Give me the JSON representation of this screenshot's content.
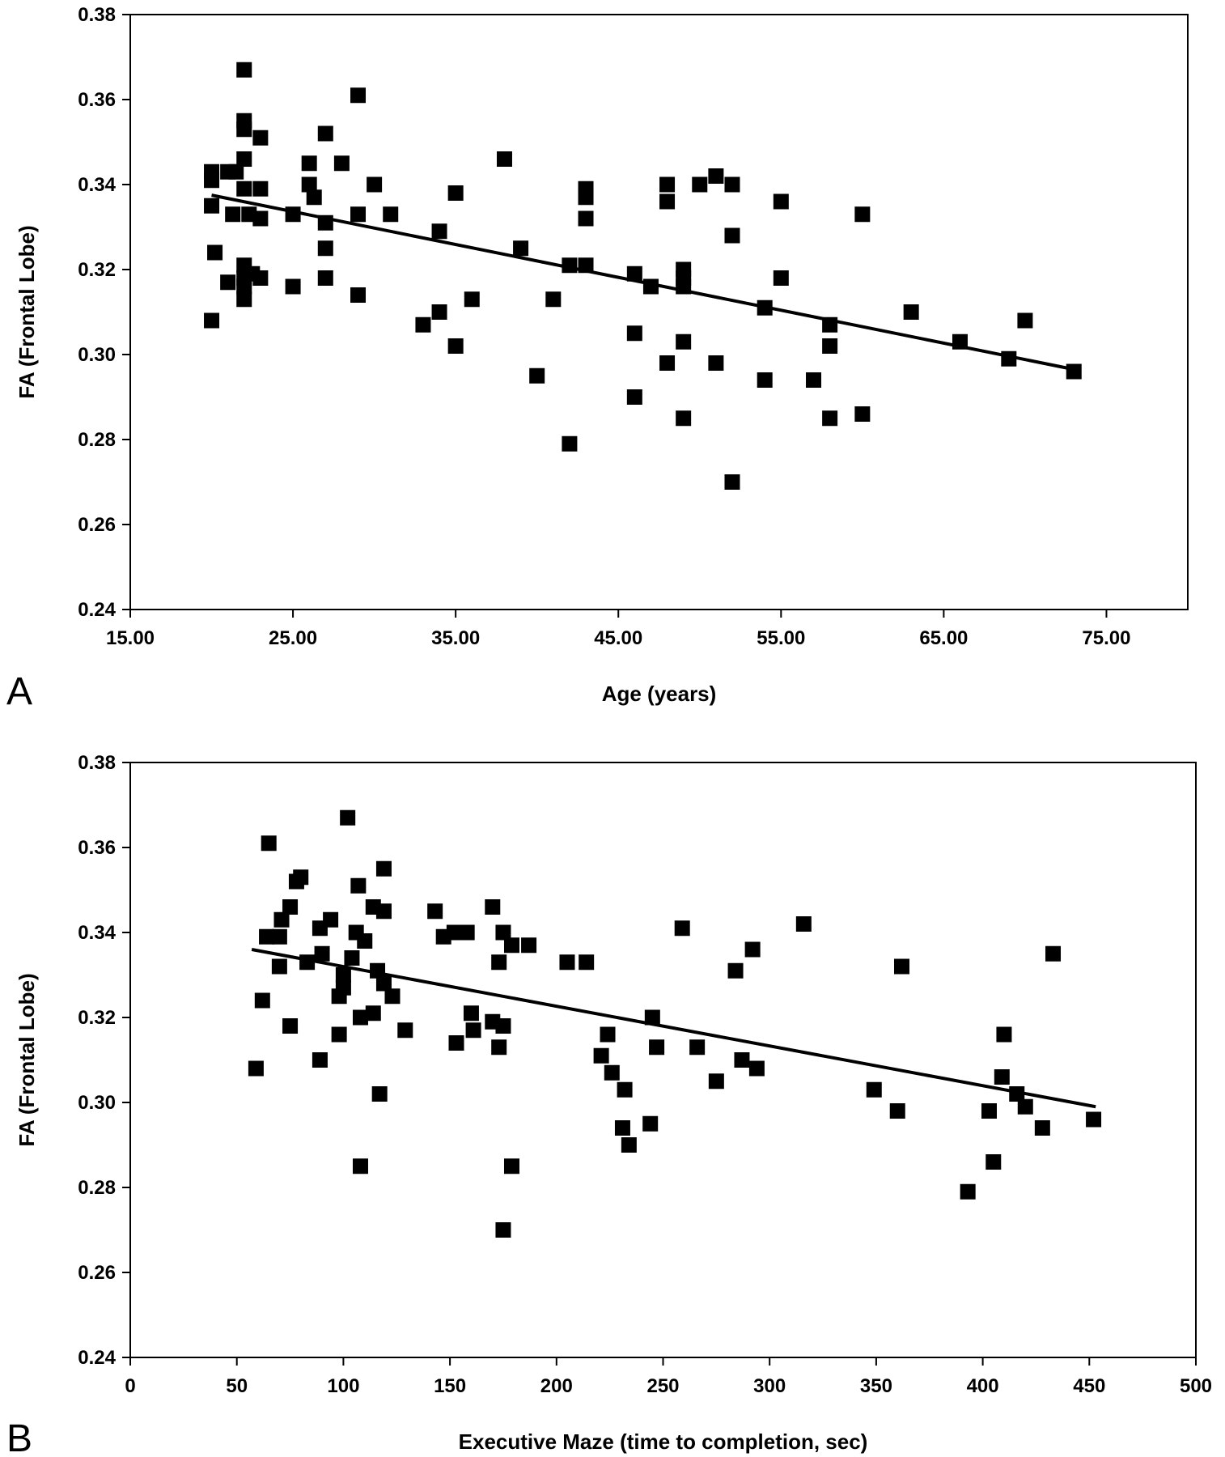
{
  "chart_data": [
    {
      "type": "scatter",
      "panel": "A",
      "xlabel": "Age (years)",
      "ylabel": "FA (Frontal Lobe)",
      "xlim": [
        15,
        80
      ],
      "ylim": [
        0.24,
        0.38
      ],
      "xticks": [
        "15.00",
        "25.00",
        "35.00",
        "45.00",
        "55.00",
        "65.00",
        "75.00"
      ],
      "xtick_values": [
        15,
        25,
        35,
        45,
        55,
        65,
        75
      ],
      "yticks": [
        "0.24",
        "0.26",
        "0.28",
        "0.30",
        "0.32",
        "0.34",
        "0.36",
        "0.38"
      ],
      "ytick_values": [
        0.24,
        0.26,
        0.28,
        0.3,
        0.32,
        0.34,
        0.36,
        0.38
      ],
      "trendline": [
        [
          20,
          0.3375
        ],
        [
          73,
          0.2965
        ]
      ],
      "points": [
        [
          20,
          0.343
        ],
        [
          20,
          0.341
        ],
        [
          20,
          0.335
        ],
        [
          20.2,
          0.324
        ],
        [
          20,
          0.308
        ],
        [
          21,
          0.343
        ],
        [
          21.3,
          0.333
        ],
        [
          21,
          0.317
        ],
        [
          21.5,
          0.343
        ],
        [
          22,
          0.367
        ],
        [
          22,
          0.355
        ],
        [
          22,
          0.353
        ],
        [
          22,
          0.346
        ],
        [
          22,
          0.339
        ],
        [
          22,
          0.321
        ],
        [
          22,
          0.318
        ],
        [
          22,
          0.316
        ],
        [
          22,
          0.313
        ],
        [
          22.3,
          0.333
        ],
        [
          22.5,
          0.319
        ],
        [
          23,
          0.351
        ],
        [
          23,
          0.339
        ],
        [
          23,
          0.332
        ],
        [
          23,
          0.318
        ],
        [
          25,
          0.333
        ],
        [
          25,
          0.316
        ],
        [
          26,
          0.345
        ],
        [
          26,
          0.34
        ],
        [
          26.3,
          0.337
        ],
        [
          27,
          0.352
        ],
        [
          27,
          0.331
        ],
        [
          27,
          0.325
        ],
        [
          27,
          0.318
        ],
        [
          28,
          0.345
        ],
        [
          29,
          0.361
        ],
        [
          29,
          0.333
        ],
        [
          29,
          0.314
        ],
        [
          30,
          0.34
        ],
        [
          31,
          0.333
        ],
        [
          33,
          0.307
        ],
        [
          34,
          0.329
        ],
        [
          34,
          0.31
        ],
        [
          35,
          0.338
        ],
        [
          35,
          0.302
        ],
        [
          36,
          0.313
        ],
        [
          38,
          0.346
        ],
        [
          39,
          0.325
        ],
        [
          40,
          0.295
        ],
        [
          41,
          0.313
        ],
        [
          42,
          0.321
        ],
        [
          42,
          0.279
        ],
        [
          43,
          0.339
        ],
        [
          43,
          0.337
        ],
        [
          43,
          0.332
        ],
        [
          43,
          0.321
        ],
        [
          46,
          0.319
        ],
        [
          46,
          0.305
        ],
        [
          46,
          0.29
        ],
        [
          47,
          0.316
        ],
        [
          48,
          0.34
        ],
        [
          48,
          0.336
        ],
        [
          48,
          0.298
        ],
        [
          49,
          0.32
        ],
        [
          49,
          0.318
        ],
        [
          49,
          0.316
        ],
        [
          49,
          0.303
        ],
        [
          49,
          0.285
        ],
        [
          50,
          0.34
        ],
        [
          51,
          0.342
        ],
        [
          51,
          0.298
        ],
        [
          52,
          0.34
        ],
        [
          52,
          0.328
        ],
        [
          52,
          0.27
        ],
        [
          54,
          0.311
        ],
        [
          54,
          0.294
        ],
        [
          55,
          0.336
        ],
        [
          55,
          0.318
        ],
        [
          57,
          0.294
        ],
        [
          58,
          0.307
        ],
        [
          58,
          0.302
        ],
        [
          58,
          0.285
        ],
        [
          60,
          0.333
        ],
        [
          60,
          0.286
        ],
        [
          63,
          0.31
        ],
        [
          66,
          0.303
        ],
        [
          69,
          0.299
        ],
        [
          70,
          0.308
        ],
        [
          73,
          0.296
        ]
      ]
    },
    {
      "type": "scatter",
      "panel": "B",
      "xlabel": "Executive Maze (time to completion, sec)",
      "ylabel": "FA (Frontal Lobe)",
      "xlim": [
        0,
        500
      ],
      "ylim": [
        0.24,
        0.38
      ],
      "xticks": [
        "0",
        "50",
        "100",
        "150",
        "200",
        "250",
        "300",
        "350",
        "400",
        "450",
        "500"
      ],
      "xtick_values": [
        0,
        50,
        100,
        150,
        200,
        250,
        300,
        350,
        400,
        450,
        500
      ],
      "yticks": [
        "0.24",
        "0.26",
        "0.28",
        "0.30",
        "0.32",
        "0.34",
        "0.36",
        "0.38"
      ],
      "ytick_values": [
        0.24,
        0.26,
        0.28,
        0.3,
        0.32,
        0.34,
        0.36,
        0.38
      ],
      "trendline": [
        [
          57,
          0.336
        ],
        [
          453,
          0.299
        ]
      ],
      "points": [
        [
          59,
          0.308
        ],
        [
          62,
          0.324
        ],
        [
          64,
          0.339
        ],
        [
          65,
          0.361
        ],
        [
          70,
          0.339
        ],
        [
          70,
          0.332
        ],
        [
          71,
          0.343
        ],
        [
          75,
          0.346
        ],
        [
          75,
          0.318
        ],
        [
          78,
          0.352
        ],
        [
          80,
          0.353
        ],
        [
          83,
          0.333
        ],
        [
          89,
          0.341
        ],
        [
          89,
          0.31
        ],
        [
          90,
          0.335
        ],
        [
          94,
          0.343
        ],
        [
          98,
          0.325
        ],
        [
          98,
          0.316
        ],
        [
          100,
          0.33
        ],
        [
          100,
          0.327
        ],
        [
          102,
          0.367
        ],
        [
          104,
          0.334
        ],
        [
          106,
          0.34
        ],
        [
          107,
          0.351
        ],
        [
          108,
          0.32
        ],
        [
          110,
          0.338
        ],
        [
          114,
          0.346
        ],
        [
          114,
          0.321
        ],
        [
          116,
          0.331
        ],
        [
          117,
          0.302
        ],
        [
          119,
          0.355
        ],
        [
          119,
          0.345
        ],
        [
          119,
          0.328
        ],
        [
          108,
          0.285
        ],
        [
          123,
          0.325
        ],
        [
          129,
          0.317
        ],
        [
          143,
          0.345
        ],
        [
          147,
          0.339
        ],
        [
          152,
          0.34
        ],
        [
          153,
          0.314
        ],
        [
          158,
          0.34
        ],
        [
          160,
          0.321
        ],
        [
          161,
          0.317
        ],
        [
          170,
          0.346
        ],
        [
          170,
          0.319
        ],
        [
          173,
          0.333
        ],
        [
          173,
          0.313
        ],
        [
          175,
          0.34
        ],
        [
          175,
          0.318
        ],
        [
          175,
          0.27
        ],
        [
          179,
          0.337
        ],
        [
          179,
          0.285
        ],
        [
          187,
          0.337
        ],
        [
          205,
          0.333
        ],
        [
          214,
          0.333
        ],
        [
          221,
          0.311
        ],
        [
          224,
          0.316
        ],
        [
          226,
          0.307
        ],
        [
          231,
          0.294
        ],
        [
          232,
          0.303
        ],
        [
          234,
          0.29
        ],
        [
          244,
          0.295
        ],
        [
          245,
          0.32
        ],
        [
          247,
          0.313
        ],
        [
          259,
          0.341
        ],
        [
          266,
          0.313
        ],
        [
          275,
          0.305
        ],
        [
          284,
          0.331
        ],
        [
          287,
          0.31
        ],
        [
          292,
          0.336
        ],
        [
          294,
          0.308
        ],
        [
          316,
          0.342
        ],
        [
          349,
          0.303
        ],
        [
          360,
          0.298
        ],
        [
          362,
          0.332
        ],
        [
          393,
          0.279
        ],
        [
          403,
          0.298
        ],
        [
          405,
          0.286
        ],
        [
          409,
          0.306
        ],
        [
          410,
          0.316
        ],
        [
          416,
          0.302
        ],
        [
          420,
          0.299
        ],
        [
          428,
          0.294
        ],
        [
          433,
          0.335
        ],
        [
          452,
          0.296
        ]
      ]
    }
  ]
}
